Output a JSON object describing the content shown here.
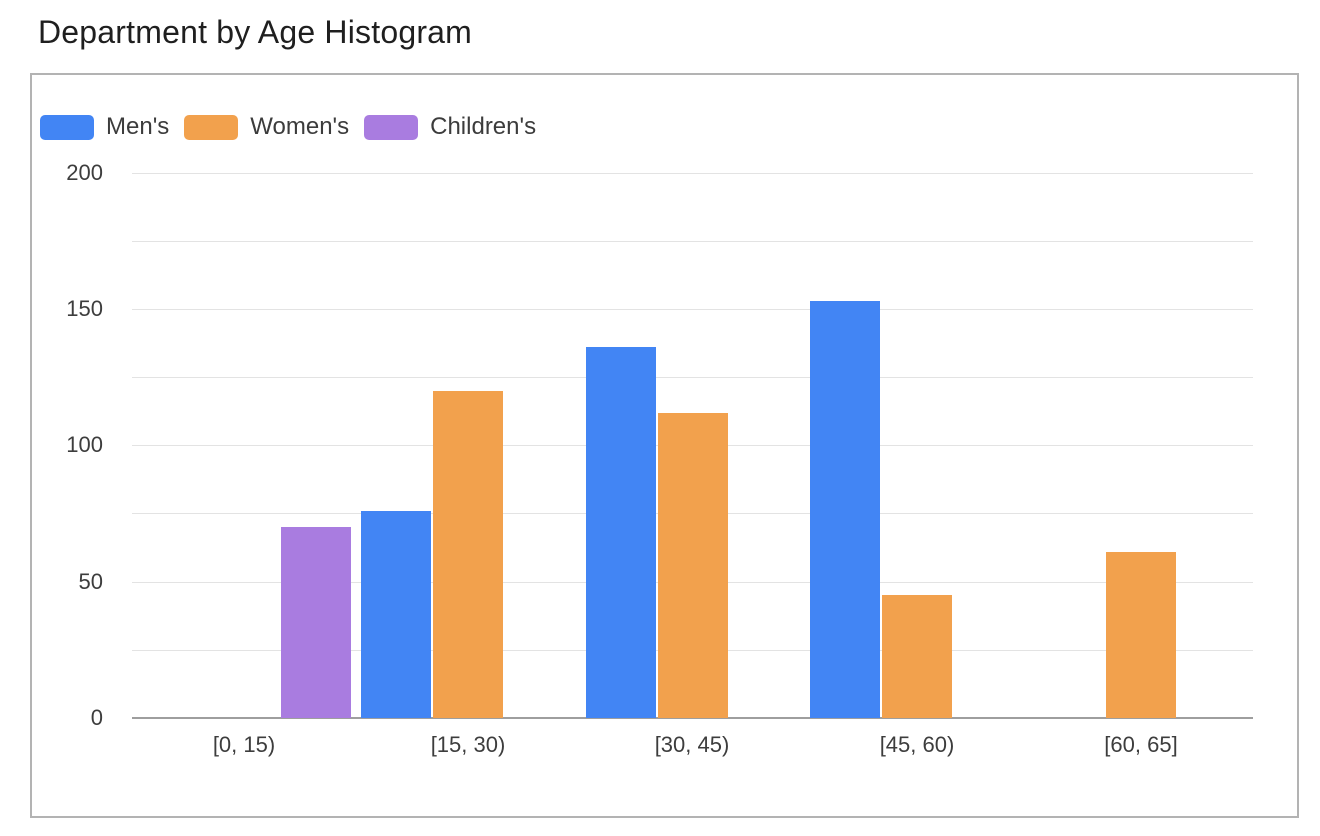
{
  "title": "Department by Age Histogram",
  "chart_data": {
    "type": "bar",
    "title": "Department by Age Histogram",
    "categories": [
      "[0, 15)",
      "[15, 30)",
      "[30, 45)",
      "[45, 60)",
      "[60, 65]"
    ],
    "series": [
      {
        "name": "Men's",
        "color": "#4285F4",
        "values": [
          0,
          76,
          136,
          153,
          0
        ]
      },
      {
        "name": "Women's",
        "color": "#F2A14D",
        "values": [
          0,
          120,
          112,
          45,
          61
        ]
      },
      {
        "name": "Children's",
        "color": "#A97CE0",
        "values": [
          70,
          0,
          0,
          0,
          0
        ]
      }
    ],
    "xlabel": "",
    "ylabel": "",
    "ylim": [
      0,
      200
    ],
    "y_tick_labels": [
      "0",
      "50",
      "100",
      "150",
      "200"
    ],
    "y_tick_step": 50,
    "grid": true,
    "grid_step": 25,
    "legend_position": "top-left",
    "bar_grouping": "grouped"
  },
  "colors": {
    "gridline": "#e3e3e3",
    "axis_line": "#9e9e9e",
    "tick_text": "#3d3d3d",
    "legend_text": "#3c3c3c",
    "title_text": "#1f1f1f",
    "card_border": "#b3b3b3",
    "background": "#ffffff"
  }
}
